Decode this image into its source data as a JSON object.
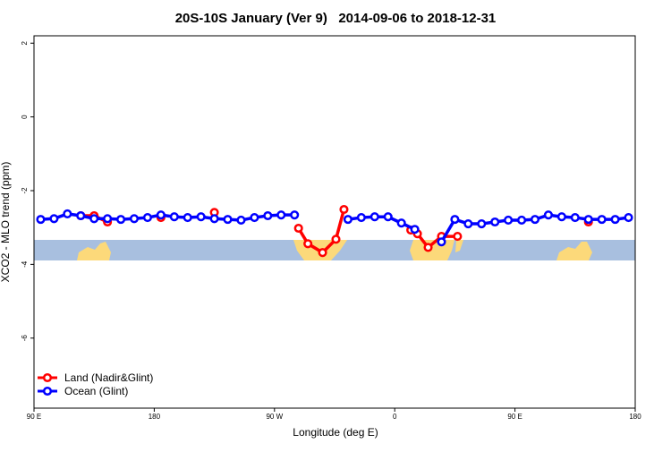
{
  "chart_data": {
    "type": "line",
    "title": "20S-10S January (Ver 9)   2014-09-06 to 2018-12-31",
    "x_label": "Longitude (deg E)",
    "y_label": "XCO2 - MLO trend (ppm)",
    "xlim": [
      90,
      540
    ],
    "xticks": [
      {
        "value": 90,
        "label": "90 E"
      },
      180,
      {
        "value": 270,
        "label": "90 W"
      },
      {
        "value": 360,
        "label": "0"
      },
      {
        "value": 450,
        "label": "90 E"
      },
      {
        "value": 540,
        "label": "180"
      }
    ],
    "ylim": [
      -7.9,
      2.2
    ],
    "yticks": [
      2,
      0,
      -2,
      -4,
      -6
    ],
    "legend": "bottom-left",
    "series": [
      {
        "name": "Land (Nadir&Glint)",
        "color": "#ff0000",
        "x": [
          125,
          135,
          145,
          null,
          185,
          null,
          225,
          null,
          288,
          295,
          306,
          316,
          322,
          null,
          372,
          377,
          385,
          395,
          407,
          null,
          505
        ],
        "values": [
          -2.68,
          -2.68,
          -2.85,
          null,
          -2.73,
          null,
          -2.59,
          null,
          -3.02,
          -3.44,
          -3.68,
          -3.32,
          -2.51,
          null,
          -3.07,
          -3.17,
          -3.54,
          -3.24,
          -3.24,
          null,
          -2.85
        ]
      },
      {
        "name": "Ocean (Glint)",
        "color": "#0000ff",
        "x": [
          95,
          105,
          115,
          125,
          135,
          145,
          155,
          165,
          175,
          185,
          195,
          205,
          215,
          225,
          235,
          245,
          255,
          265,
          275,
          285,
          null,
          325,
          335,
          345,
          355,
          365,
          375,
          null,
          395,
          405,
          415,
          425,
          435,
          445,
          455,
          465,
          475,
          485,
          495,
          505,
          515,
          525,
          535
        ],
        "values": [
          -2.78,
          -2.76,
          -2.63,
          -2.68,
          -2.76,
          -2.76,
          -2.78,
          -2.76,
          -2.73,
          -2.66,
          -2.71,
          -2.73,
          -2.71,
          -2.76,
          -2.78,
          -2.8,
          -2.73,
          -2.68,
          -2.66,
          -2.66,
          null,
          -2.78,
          -2.73,
          -2.71,
          -2.71,
          -2.88,
          -3.05,
          null,
          -3.39,
          -2.78,
          -2.9,
          -2.9,
          -2.85,
          -2.8,
          -2.8,
          -2.78,
          -2.66,
          -2.71,
          -2.73,
          -2.78,
          -2.78,
          -2.78,
          -2.73
        ]
      }
    ]
  }
}
